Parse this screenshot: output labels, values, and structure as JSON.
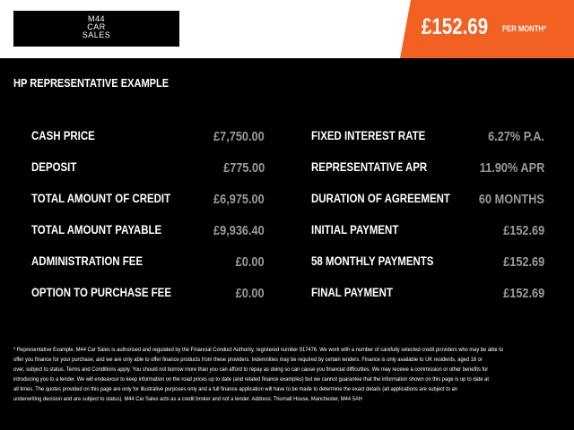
{
  "header": {
    "logo_text": "M44 CAR SALES",
    "logo_lines": [
      "M44",
      "CAR",
      "SALES"
    ],
    "monthly_price": "£152.69",
    "per_month_label": "PER MONTH*",
    "accent_color": "#f26122"
  },
  "section": {
    "title": "HP REPRESENTATIVE EXAMPLE"
  },
  "left_rows": [
    {
      "label": "CASH PRICE",
      "value": "£7,750.00"
    },
    {
      "label": "DEPOSIT",
      "value": "£775.00"
    },
    {
      "label": "TOTAL AMOUNT OF CREDIT",
      "value": "£6,975.00"
    },
    {
      "label": "TOTAL AMOUNT PAYABLE",
      "value": "£9,936.40"
    },
    {
      "label": "ADMINISTRATION FEE",
      "value": "£0.00"
    },
    {
      "label": "OPTION TO PURCHASE FEE",
      "value": "£0.00"
    }
  ],
  "right_rows": [
    {
      "label": "FIXED INTEREST RATE",
      "value": "6.27% P.A."
    },
    {
      "label": "REPRESENTATIVE APR",
      "value": "11.90% APR"
    },
    {
      "label": "DURATION OF AGREEMENT",
      "value": "60 MONTHS"
    },
    {
      "label": "INITIAL PAYMENT",
      "value": "£152.69"
    },
    {
      "label": "58 MONTHLY PAYMENTS",
      "value": "£152.69"
    },
    {
      "label": "FINAL PAYMENT",
      "value": "£152.69"
    }
  ],
  "footnote_lines": [
    "* Representative Example. M44 Car Sales is authorised and regulated by the Financial Conduct Authority, registered number 917476. We work with a number of carefully selected credit providers who may be able to",
    "offer you finance for your purchase, and we are only able to offer finance products from these providers. Indemnities may be required by certain lenders. Finance is only available to UK residents, aged 18 or",
    "over, subject to status. Terms and Conditions apply. You should not borrow more than you can afford to repay as doing so can cause you financial difficulties. We may receive a commission or other benefits for",
    "introducing you to a lender. We will endeavour to keep information on the road prices up to date (and related finance examples) but we cannot guarantee that the information shown on this page is up to date at",
    "all times. The quotes provided on this page are only for illustrative purposes only and a full finance application will have to be made to determine the exact details (all applications are subject to an",
    "underwriting decision and are subject to status). M44 Car Sales acts as a credit broker and not a lender. Address: Thurnall House, Manchester, M44 5AH"
  ]
}
